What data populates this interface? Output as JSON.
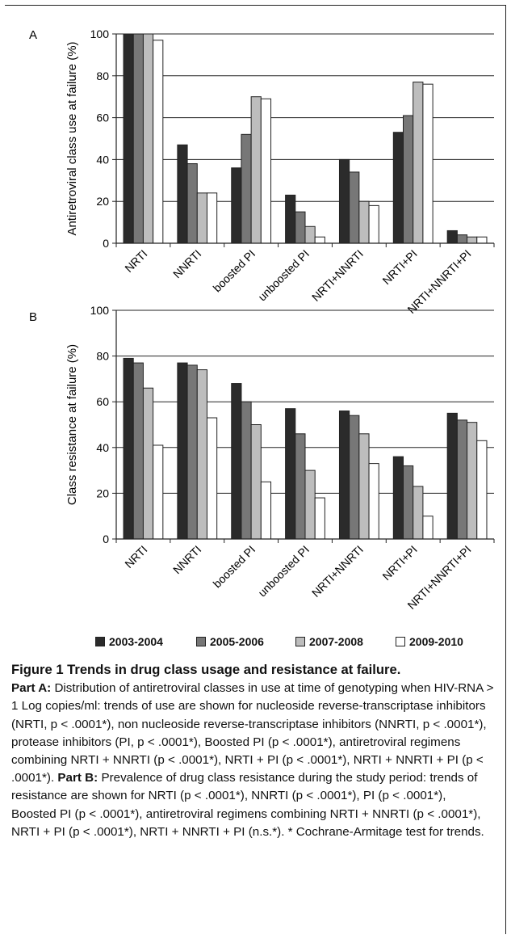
{
  "chart_data": [
    {
      "type": "bar",
      "panel_label": "A",
      "ylabel": "Antiretroviral class use at failure (%)",
      "ylim": [
        0,
        100
      ],
      "yticks": [
        0,
        20,
        40,
        60,
        80,
        100
      ],
      "grid": true,
      "categories": [
        "NRTI",
        "NNRTI",
        "boosted PI",
        "unboosted PI",
        "NRTI+NNRTI",
        "NRTI+PI",
        "NRTI+NNRTI+PI"
      ],
      "series": [
        {
          "name": "2003-2004",
          "values": [
            100,
            47,
            36,
            23,
            40,
            53,
            6
          ]
        },
        {
          "name": "2005-2006",
          "values": [
            100,
            38,
            52,
            15,
            34,
            61,
            4
          ]
        },
        {
          "name": "2007-2008",
          "values": [
            100,
            24,
            70,
            8,
            20,
            77,
            3
          ]
        },
        {
          "name": "2009-2010",
          "values": [
            97,
            24,
            69,
            3,
            18,
            76,
            3
          ]
        }
      ]
    },
    {
      "type": "bar",
      "panel_label": "B",
      "ylabel": "Class resistance at failure (%)",
      "ylim": [
        0,
        100
      ],
      "yticks": [
        0,
        20,
        40,
        60,
        80,
        100
      ],
      "grid": true,
      "categories": [
        "NRTI",
        "NNRTI",
        "boosted PI",
        "unboosted PI",
        "NRTI+NNRTI",
        "NRTI+PI",
        "NRTI+NNRTI+PI"
      ],
      "series": [
        {
          "name": "2003-2004",
          "values": [
            79,
            77,
            68,
            57,
            56,
            36,
            55
          ]
        },
        {
          "name": "2005-2006",
          "values": [
            77,
            76,
            60,
            46,
            54,
            32,
            52
          ]
        },
        {
          "name": "2007-2008",
          "values": [
            66,
            74,
            50,
            30,
            46,
            23,
            51
          ]
        },
        {
          "name": "2009-2010",
          "values": [
            41,
            53,
            25,
            18,
            33,
            10,
            43
          ]
        }
      ]
    }
  ],
  "legend": {
    "placement": "bottom",
    "items": [
      {
        "label": "2003-2004",
        "color": "#2b2b2b"
      },
      {
        "label": "2005-2006",
        "color": "#777777"
      },
      {
        "label": "2007-2008",
        "color": "#bdbdbd"
      },
      {
        "label": "2009-2010",
        "color": "#ffffff"
      }
    ]
  },
  "caption": {
    "title": "Figure 1 Trends in drug class usage and resistance at failure.",
    "part_a_label": "Part A:",
    "part_a_text": " Distribution of antiretroviral classes in use at time of genotyping when HIV-RNA > 1 Log copies/ml: trends of use are shown for nucleoside reverse-transcriptase inhibitors (NRTI, p < .0001*), non nucleoside reverse-transcriptase inhibitors (NNRTI, p < .0001*), protease inhibitors (PI, p < .0001*), Boosted PI (p < .0001*), antiretroviral regimens combining NRTI + NNRTI (p < .0001*), NRTI + PI (p < .0001*), NRTI + NNRTI + PI (p < .0001*). ",
    "part_b_label": "Part B:",
    "part_b_text": " Prevalence of drug class resistance during the study period: trends of resistance are shown for NRTI (p < .0001*), NNRTI (p < .0001*), PI (p < .0001*), Boosted PI (p < .0001*), antiretroviral regimens combining NRTI + NNRTI (p < .0001*), NRTI + PI (p < .0001*), NRTI + NNRTI + PI (n.s.*). * Cochrane-Armitage test for trends."
  }
}
